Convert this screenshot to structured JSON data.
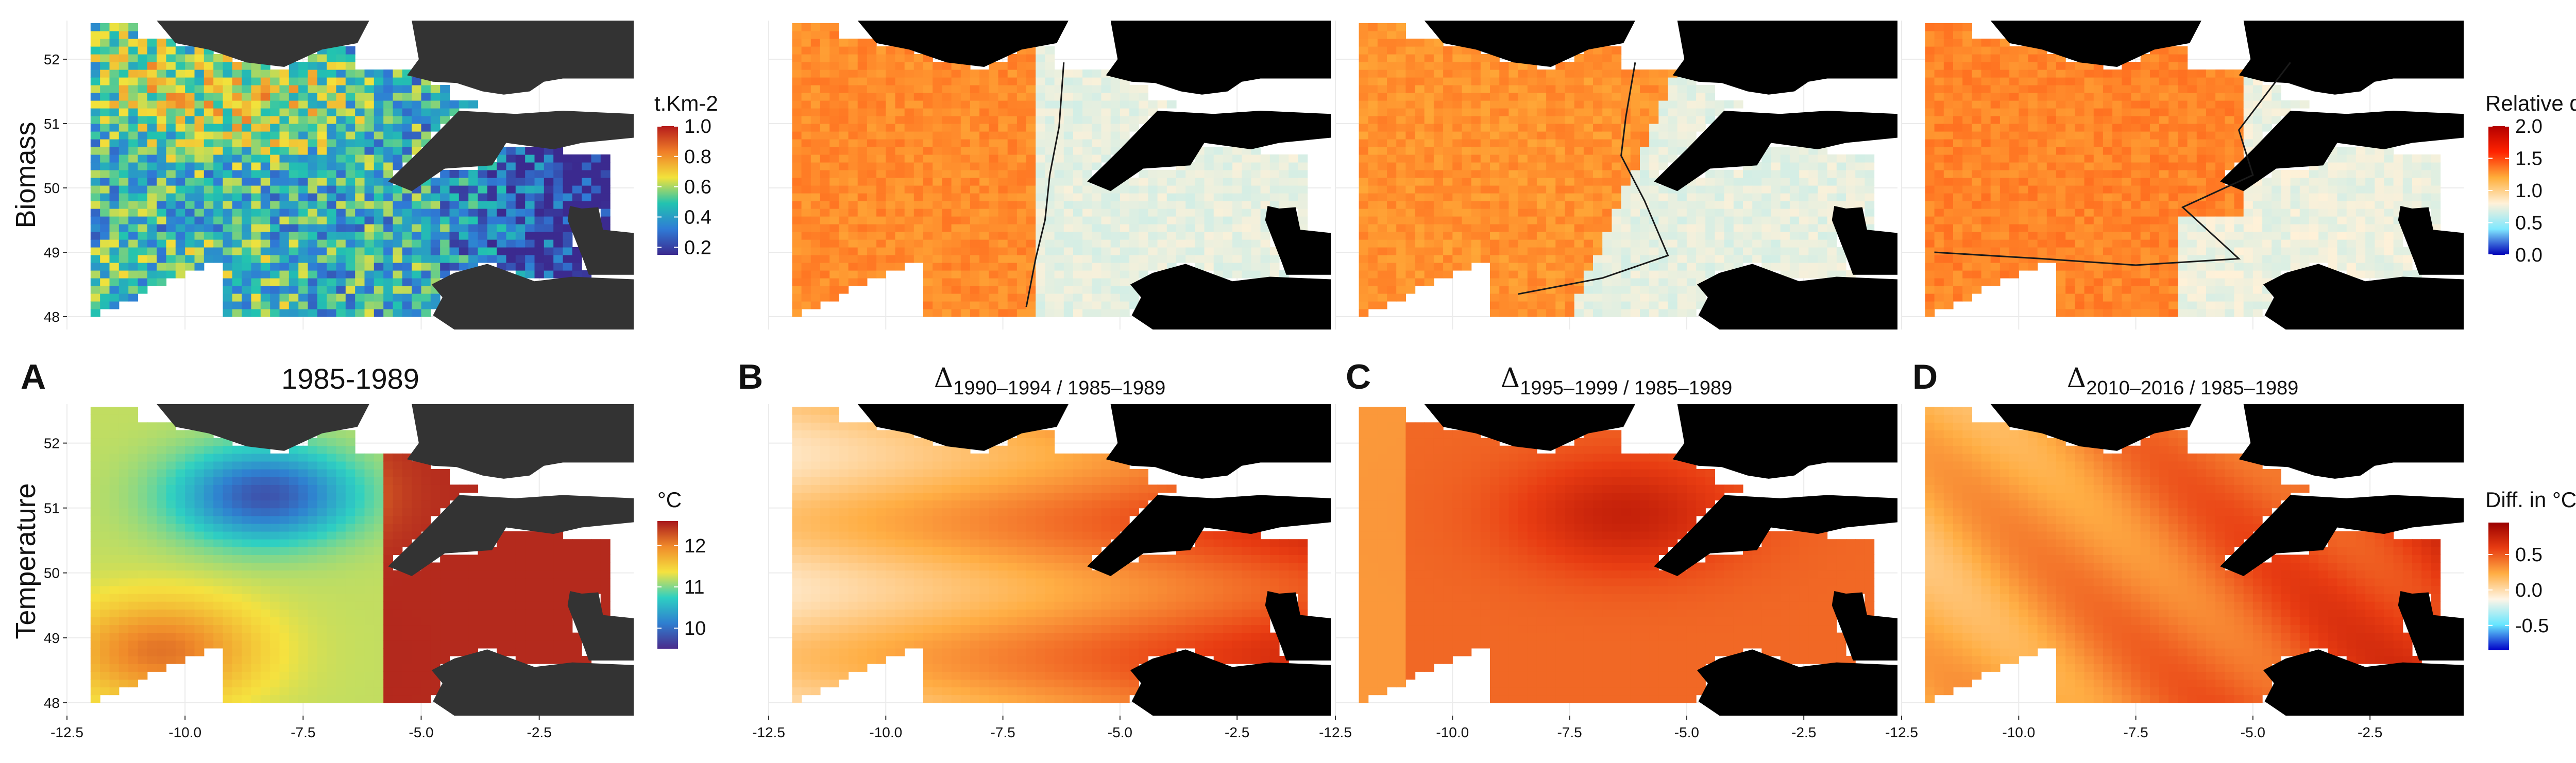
{
  "chart_data": {
    "type": "heatmap",
    "rows": [
      {
        "label": "Biomass"
      },
      {
        "label": "Temperature"
      }
    ],
    "columns": [
      {
        "letter": "A",
        "title": "1985-1989",
        "delta": "",
        "sub": ""
      },
      {
        "letter": "B",
        "title": "",
        "delta": "Δ",
        "sub": "1990–1994 / 1985–1989"
      },
      {
        "letter": "C",
        "title": "",
        "delta": "Δ",
        "sub": "1995–1999 / 1985–1989"
      },
      {
        "letter": "D",
        "title": "",
        "delta": "Δ",
        "sub": "2010–2016 / 1985–1989"
      }
    ],
    "x_ticks": [
      "-12.5",
      "-10.0",
      "-7.5",
      "-5.0",
      "-2.5"
    ],
    "y_ticks": [
      "52",
      "51",
      "50",
      "49",
      "48"
    ],
    "xlim": [
      -12.5,
      -0.5
    ],
    "ylim": [
      47.8,
      52.6
    ],
    "grid": true,
    "legends": {
      "biomass": {
        "title": "t.Km-2",
        "ticks": [
          "1.0",
          "0.8",
          "0.6",
          "0.4",
          "0.2"
        ],
        "range": [
          0.15,
          1.0
        ],
        "colors": [
          "#3b2a8f",
          "#2f7bd6",
          "#22c3b0",
          "#f2e23b",
          "#f07f28",
          "#b51b1b"
        ]
      },
      "temperature": {
        "title": "°C",
        "ticks": [
          "12",
          "11",
          "10"
        ],
        "range": [
          9.5,
          12.6
        ],
        "colors": [
          "#4a2c8c",
          "#2f7fd0",
          "#2ed0c2",
          "#f5e23f",
          "#f08a2a",
          "#a8171b"
        ]
      },
      "relative": {
        "title": "Relative diff.",
        "ticks": [
          "2.0",
          "1.5",
          "1.0",
          "0.5",
          "0.0"
        ],
        "range": [
          0,
          2
        ],
        "colors": [
          "#0000b8",
          "#7fe8ff",
          "#fff1d8",
          "#ffae3a",
          "#ff2200",
          "#b30000"
        ]
      },
      "difference": {
        "title": "Diff. in °C",
        "ticks": [
          "0.5",
          "0.0",
          "-0.5"
        ],
        "range": [
          -0.85,
          0.95
        ],
        "colors": [
          "#0000c8",
          "#66e6ff",
          "#fff5e6",
          "#ffae44",
          "#e83c12",
          "#9a0000"
        ]
      }
    },
    "colors": {
      "land": "#000000",
      "land_first_column": "#333333",
      "contour": "#1a1a1a",
      "grid": "#ebebeb"
    }
  }
}
